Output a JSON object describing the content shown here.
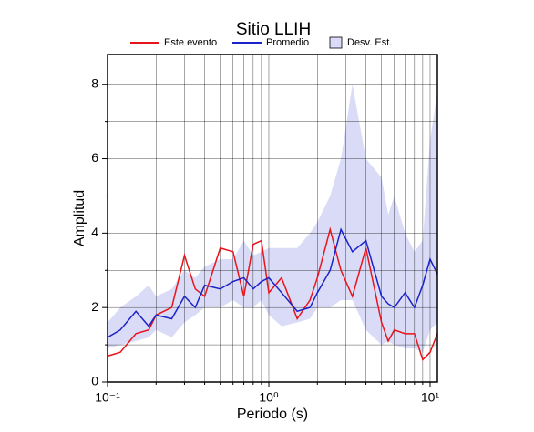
{
  "chart_data": {
    "type": "line",
    "title": "Sitio LLIH",
    "x_label": "Periodo (s)",
    "y_label": "Amplitud",
    "xscale": "log",
    "grid": true,
    "xlim": [
      0.1,
      11.1
    ],
    "ylim": [
      0,
      8.8
    ],
    "xticks": [
      {
        "value": 0.1,
        "label": "10⁻¹"
      },
      {
        "value": 1,
        "label": "10⁰"
      },
      {
        "value": 10,
        "label": "10¹"
      }
    ],
    "xminor": [
      0.2,
      0.3,
      0.4,
      0.5,
      0.6,
      0.7,
      0.8,
      0.9,
      2,
      3,
      4,
      5,
      6,
      7,
      8,
      9
    ],
    "yticks": [
      0,
      2,
      4,
      6,
      8
    ],
    "yminor": [
      1,
      3,
      5,
      7
    ],
    "x": [
      0.1,
      0.12,
      0.15,
      0.18,
      0.2,
      0.25,
      0.3,
      0.35,
      0.4,
      0.5,
      0.6,
      0.7,
      0.8,
      0.9,
      1.0,
      1.2,
      1.5,
      1.8,
      2.0,
      2.4,
      2.8,
      3.3,
      4,
      5,
      5.5,
      6,
      7,
      8,
      9,
      10,
      11.1
    ],
    "series": [
      {
        "name": "Este evento",
        "color": "#e8141c",
        "values": [
          0.7,
          0.8,
          1.3,
          1.4,
          1.8,
          2.0,
          3.4,
          2.5,
          2.3,
          3.6,
          3.5,
          2.3,
          3.7,
          3.8,
          2.4,
          2.8,
          1.7,
          2.2,
          2.8,
          4.1,
          3.0,
          2.3,
          3.6,
          1.6,
          1.1,
          1.4,
          1.3,
          1.3,
          0.6,
          0.8,
          1.3
        ]
      },
      {
        "name": "Promedio",
        "color": "#1a22c8",
        "values": [
          1.2,
          1.4,
          1.9,
          1.5,
          1.8,
          1.7,
          2.3,
          2.0,
          2.6,
          2.5,
          2.7,
          2.8,
          2.5,
          2.7,
          2.8,
          2.4,
          1.9,
          2.0,
          2.4,
          3.0,
          4.1,
          3.5,
          3.8,
          2.3,
          2.1,
          2.0,
          2.4,
          2.0,
          2.6,
          3.3,
          2.9
        ]
      },
      {
        "name": "Desv. Est.",
        "color": "#dadcf7",
        "type": "band",
        "lower": [
          0.9,
          1.0,
          1.1,
          1.2,
          1.4,
          1.2,
          1.6,
          1.8,
          2.0,
          2.0,
          2.2,
          2.0,
          2.0,
          2.2,
          1.8,
          1.5,
          1.6,
          1.7,
          2.0,
          2.0,
          2.2,
          2.2,
          1.4,
          1.0,
          1.1,
          1.0,
          0.9,
          0.9,
          0.8,
          1.4,
          1.6
        ],
        "upper": [
          1.6,
          2.0,
          2.3,
          2.6,
          2.3,
          2.5,
          3.0,
          2.8,
          3.1,
          3.3,
          3.3,
          3.8,
          3.4,
          3.5,
          3.6,
          3.6,
          3.6,
          4.0,
          4.3,
          5.0,
          6.0,
          8.0,
          6.0,
          5.5,
          4.5,
          5.0,
          4.0,
          3.5,
          3.8,
          6.5,
          7.8
        ]
      }
    ]
  }
}
